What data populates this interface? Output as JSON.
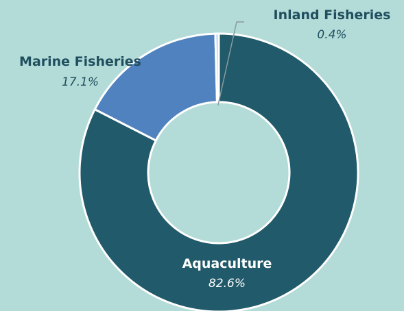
{
  "chart_data": {
    "type": "pie",
    "style": "donut",
    "slices": [
      {
        "name": "Aquaculture",
        "pct_label": "82.6%",
        "value": 82.6,
        "color": "#215a6a"
      },
      {
        "name": "Marine Fisheries",
        "pct_label": "17.1%",
        "value": 17.1,
        "color": "#4f82bf"
      },
      {
        "name": "Inland Fisheries",
        "pct_label": "0.4%",
        "value": 0.4,
        "color": "#b8d0ee"
      }
    ],
    "title": "",
    "legend": "none",
    "background": "#b3dbd8",
    "slice_border_color": "#ffffff"
  }
}
